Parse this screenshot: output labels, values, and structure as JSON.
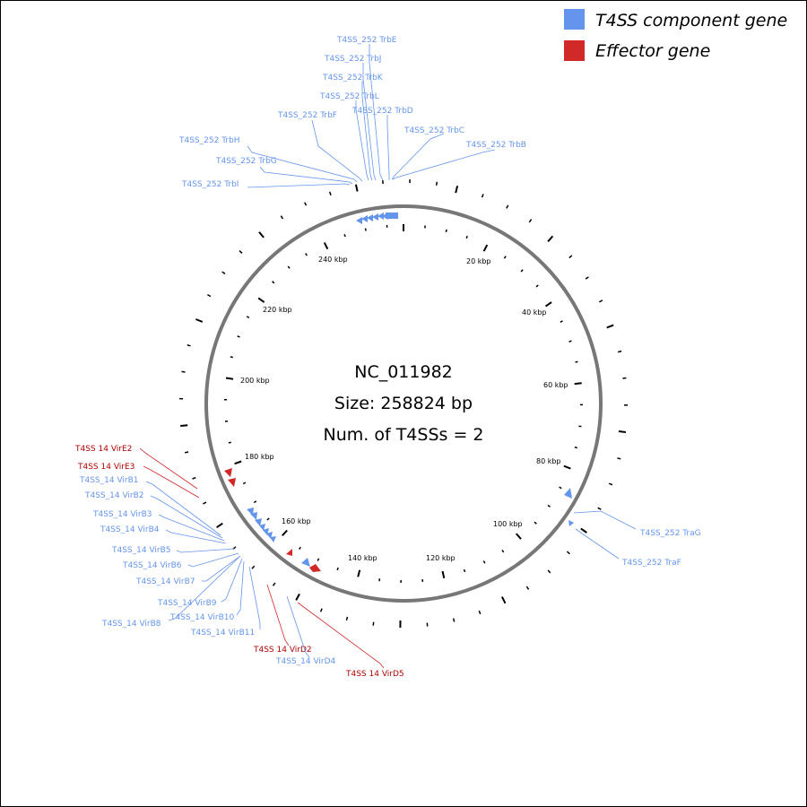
{
  "legend": [
    {
      "label": "T4SS component gene",
      "color": "#6495ED"
    },
    {
      "label": "Effector gene",
      "color": "#D12828"
    }
  ],
  "center": {
    "accession": "NC_011982",
    "size": "Size: 258824 bp",
    "num_t4ss": "Num. of T4SSs = 2"
  },
  "genome_length": 258824,
  "ring_colors": {
    "backbone": "#777777",
    "ticks": "#000000",
    "component": "#6495ED",
    "effector": "#D12828"
  },
  "kbp_labels": [
    "20 kbp",
    "40 kbp",
    "60 kbp",
    "80 kbp",
    "100 kbp",
    "120 kbp",
    "140 kbp",
    "160 kbp",
    "180 kbp",
    "200 kbp",
    "220 kbp",
    "240 kbp"
  ],
  "genes": [
    {
      "label": "T4SS_252 TrbE",
      "type": "component"
    },
    {
      "label": "T4SS_252 TrbJ",
      "type": "component"
    },
    {
      "label": "T4SS_252 TrbK",
      "type": "component"
    },
    {
      "label": "T4SS_252 TrbL",
      "type": "component"
    },
    {
      "label": "T4SS_252 TrbD",
      "type": "component"
    },
    {
      "label": "T4SS_252 TrbF",
      "type": "component"
    },
    {
      "label": "T4SS_252 TrbC",
      "type": "component"
    },
    {
      "label": "T4SS_252 TrbB",
      "type": "component"
    },
    {
      "label": "T4SS_252 TrbH",
      "type": "component"
    },
    {
      "label": "T4SS_252 TrbG",
      "type": "component"
    },
    {
      "label": "T4SS_252 TrbI",
      "type": "component"
    },
    {
      "label": "T4SS_252 TraG",
      "type": "component"
    },
    {
      "label": "T4SS_252 TraF",
      "type": "component"
    },
    {
      "label": "T4SS 14 VirE2",
      "type": "effector"
    },
    {
      "label": "T4SS 14 VirE3",
      "type": "effector"
    },
    {
      "label": "T4SS_14 VirB1",
      "type": "component"
    },
    {
      "label": "T4SS_14 VirB2",
      "type": "component"
    },
    {
      "label": "T4SS_14 VirB3",
      "type": "component"
    },
    {
      "label": "T4SS_14 VirB4",
      "type": "component"
    },
    {
      "label": "T4SS_14 VirB5",
      "type": "component"
    },
    {
      "label": "T4SS_14 VirB6",
      "type": "component"
    },
    {
      "label": "T4SS_14 VirB7",
      "type": "component"
    },
    {
      "label": "T4SS_14 VirB9",
      "type": "component"
    },
    {
      "label": "T4SS_14 VirB8",
      "type": "component"
    },
    {
      "label": "T4SS_14 VirB10",
      "type": "component"
    },
    {
      "label": "T4SS_14 VirB11",
      "type": "component"
    },
    {
      "label": "T4SS 14 VirD2",
      "type": "effector"
    },
    {
      "label": "T4SS_14 VirD4",
      "type": "component"
    },
    {
      "label": "T4SS 14 VirD5",
      "type": "effector"
    }
  ]
}
